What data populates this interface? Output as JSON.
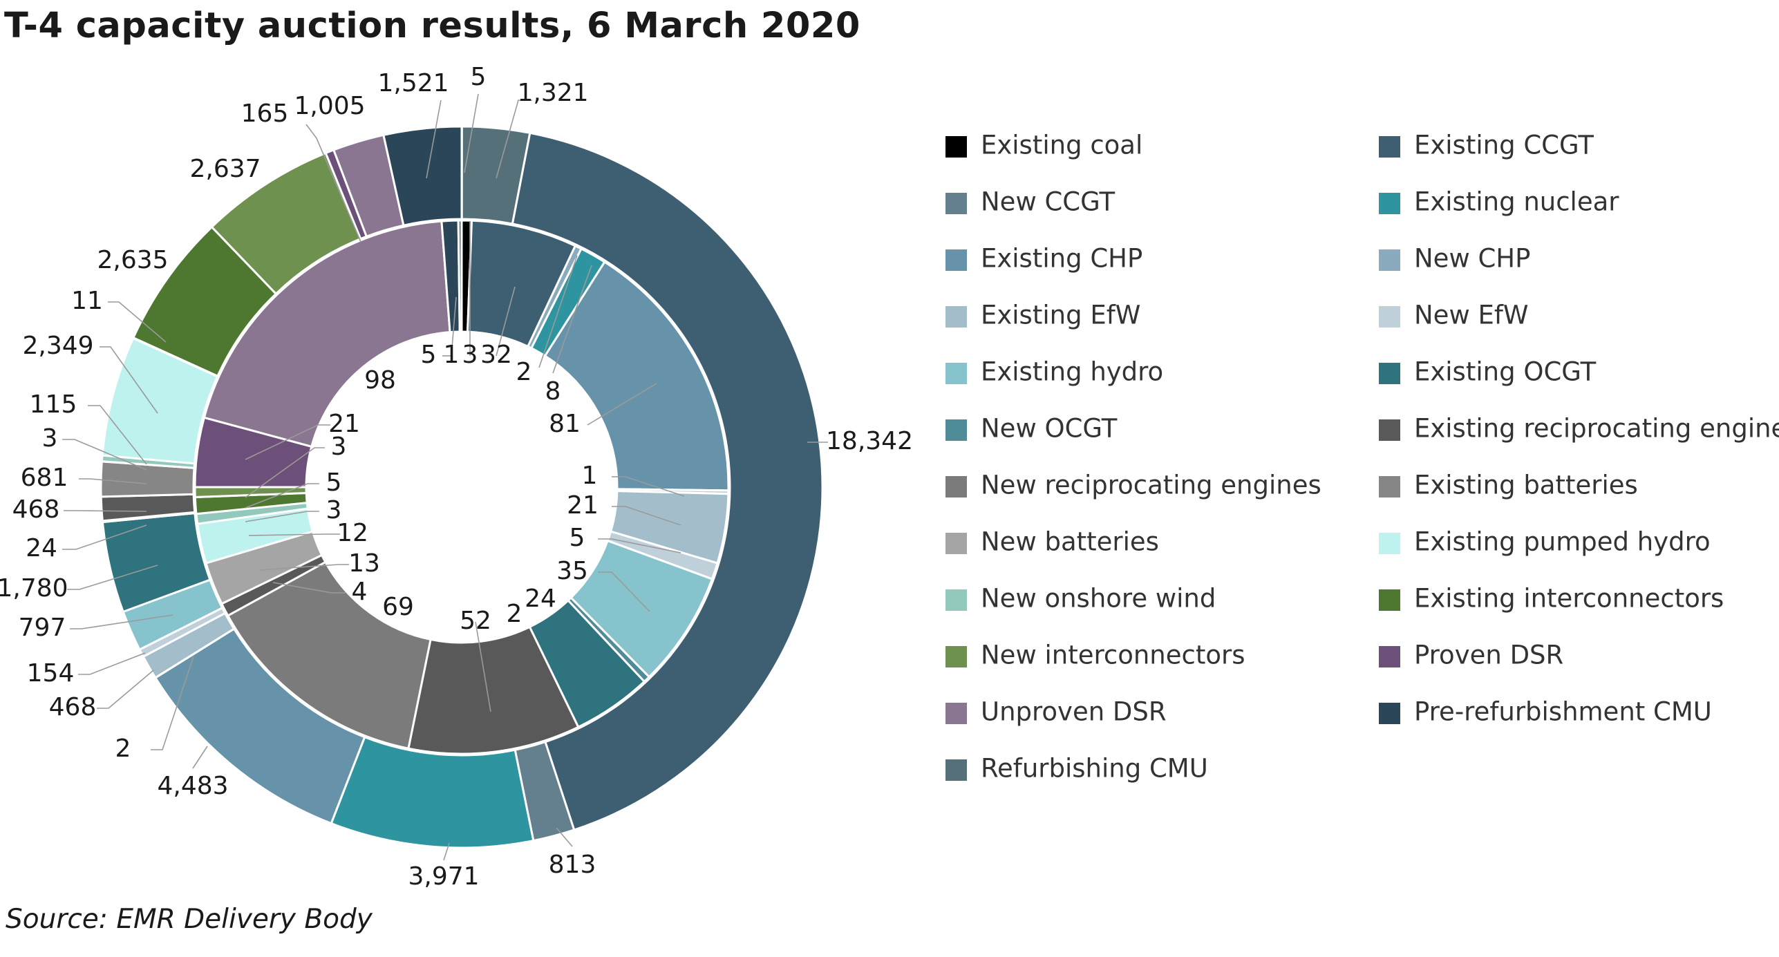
{
  "title": "T-4 capacity auction results, 6 March 2020",
  "source": "Source: EMR Delivery Body",
  "chart_data": {
    "type": "pie",
    "subtype": "double-donut",
    "title": "T-4 capacity auction results, 6 March 2020",
    "legend_position": "right",
    "categories": [
      {
        "name": "Existing coal",
        "color": "#000000"
      },
      {
        "name": "Existing CCGT",
        "color": "#3e5f72"
      },
      {
        "name": "New CCGT",
        "color": "#647f8d"
      },
      {
        "name": "Existing nuclear",
        "color": "#2e95a0"
      },
      {
        "name": "Existing CHP",
        "color": "#6793aa"
      },
      {
        "name": "New CHP",
        "color": "#8aaabd"
      },
      {
        "name": "Existing EfW",
        "color": "#a3bdcb"
      },
      {
        "name": "New EfW",
        "color": "#bfd0db"
      },
      {
        "name": "Existing hydro",
        "color": "#86c3cc"
      },
      {
        "name": "Existing OCGT",
        "color": "#2f737e"
      },
      {
        "name": "New OCGT",
        "color": "#4f8c98"
      },
      {
        "name": "Existing reciprocating engines",
        "color": "#595959"
      },
      {
        "name": "New reciprocating engines",
        "color": "#7b7b7b"
      },
      {
        "name": "Existing batteries",
        "color": "#868686"
      },
      {
        "name": "New batteries",
        "color": "#a5a5a5"
      },
      {
        "name": "Existing pumped hydro",
        "color": "#bef2ef"
      },
      {
        "name": "New onshore wind",
        "color": "#93c9bd"
      },
      {
        "name": "Existing interconnectors",
        "color": "#4e782f"
      },
      {
        "name": "New interconnectors",
        "color": "#6f9150"
      },
      {
        "name": "Proven DSR",
        "color": "#6d5079"
      },
      {
        "name": "Unproven DSR",
        "color": "#8a7690"
      },
      {
        "name": "Pre-refurbishment CMU",
        "color": "#2a4658"
      },
      {
        "name": "Refurbishing CMU",
        "color": "#56707a"
      }
    ],
    "series": [
      {
        "ring": "outer",
        "values": [
          {
            "category": "Existing coal",
            "value": 5,
            "label": "5"
          },
          {
            "category": "Refurbishing CMU",
            "value": 1321,
            "label": "1,321"
          },
          {
            "category": "Existing CCGT",
            "value": 18342,
            "label": "18,342"
          },
          {
            "category": "New CCGT",
            "value": 813,
            "label": "813"
          },
          {
            "category": "Existing nuclear",
            "value": 3971,
            "label": "3,971"
          },
          {
            "category": "Existing CHP",
            "value": 4483,
            "label": "4,483"
          },
          {
            "category": "New CHP",
            "value": 2,
            "label": "2"
          },
          {
            "category": "Existing EfW",
            "value": 468,
            "label": "468"
          },
          {
            "category": "New EfW",
            "value": 154,
            "label": "154"
          },
          {
            "category": "Existing hydro",
            "value": 797,
            "label": "797"
          },
          {
            "category": "Existing OCGT",
            "value": 1780,
            "label": "1,780"
          },
          {
            "category": "New OCGT",
            "value": 24,
            "label": "24"
          },
          {
            "category": "Existing reciprocating engines",
            "value": 468,
            "label": "468"
          },
          {
            "category": "Existing batteries",
            "value": 681,
            "label": "681"
          },
          {
            "category": "New batteries",
            "value": 3,
            "label": "3"
          },
          {
            "category": "New onshore wind",
            "value": 115,
            "label": "115"
          },
          {
            "category": "Existing pumped hydro",
            "value": 2349,
            "label": "2,349"
          },
          {
            "category": "New interconnectors",
            "value": 11,
            "label": "11"
          },
          {
            "category": "Existing interconnectors",
            "value": 2635,
            "label": "2,635"
          },
          {
            "category": "New interconnectors",
            "value": 2637,
            "label": "2,637"
          },
          {
            "category": "Proven DSR",
            "value": 165,
            "label": "165"
          },
          {
            "category": "Unproven DSR",
            "value": 1005,
            "label": "1,005"
          },
          {
            "category": "Pre-refurbishment CMU",
            "value": 1521,
            "label": "1,521"
          }
        ]
      },
      {
        "ring": "inner",
        "values": [
          {
            "category": "Existing coal",
            "value": 3,
            "label": "3"
          },
          {
            "category": "Existing CCGT",
            "value": 32,
            "label": "32"
          },
          {
            "category": "New CHP",
            "value": 2,
            "label": "2"
          },
          {
            "category": "Existing nuclear",
            "value": 8,
            "label": "8"
          },
          {
            "category": "Existing CHP",
            "value": 81,
            "label": "81"
          },
          {
            "category": "New EfW",
            "value": 1,
            "label": "1"
          },
          {
            "category": "Existing EfW",
            "value": 21,
            "label": "21"
          },
          {
            "category": "New EfW",
            "value": 5,
            "label": "5"
          },
          {
            "category": "Existing hydro",
            "value": 35,
            "label": "35"
          },
          {
            "category": "New OCGT",
            "value": 2,
            "label": "2"
          },
          {
            "category": "Existing OCGT",
            "value": 24,
            "label": "24"
          },
          {
            "category": "Existing reciprocating engines",
            "value": 52,
            "label": "52"
          },
          {
            "category": "New reciprocating engines",
            "value": 69,
            "label": "69"
          },
          {
            "category": "Existing reciprocating engines",
            "value": 4,
            "label": "4"
          },
          {
            "category": "New batteries",
            "value": 13,
            "label": "13"
          },
          {
            "category": "Existing pumped hydro",
            "value": 12,
            "label": "12"
          },
          {
            "category": "New onshore wind",
            "value": 3,
            "label": "3"
          },
          {
            "category": "Existing interconnectors",
            "value": 5,
            "label": "5"
          },
          {
            "category": "New interconnectors",
            "value": 3,
            "label": "3"
          },
          {
            "category": "Proven DSR",
            "value": 21,
            "label": "21"
          },
          {
            "category": "Unproven DSR",
            "value": 98,
            "label": "98"
          },
          {
            "category": "Pre-refurbishment CMU",
            "value": 5,
            "label": "5"
          },
          {
            "category": "Refurbishing CMU",
            "value": 1,
            "label": "1"
          }
        ]
      }
    ]
  }
}
